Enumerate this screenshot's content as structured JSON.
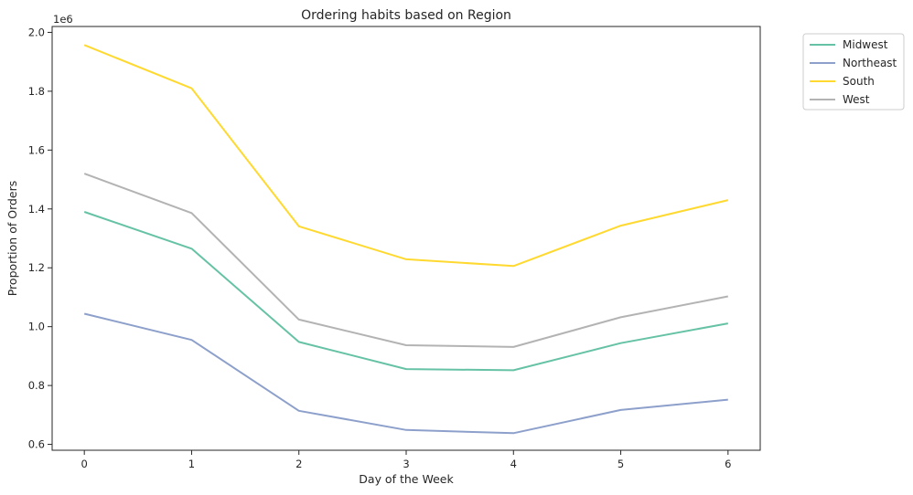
{
  "chart_data": {
    "type": "line",
    "title": "Ordering habits based on Region",
    "xlabel": "Day of the Week",
    "ylabel": "Proportion of Orders",
    "offset_label": "1e6",
    "x": [
      0,
      1,
      2,
      3,
      4,
      5,
      6
    ],
    "xticks": [
      "0",
      "1",
      "2",
      "3",
      "4",
      "5",
      "6"
    ],
    "xlim": [
      -0.3,
      6.3
    ],
    "yticks": [
      "0.6",
      "0.8",
      "1.0",
      "1.2",
      "1.4",
      "1.6",
      "1.8",
      "2.0"
    ],
    "ytick_values": [
      0.6,
      0.8,
      1.0,
      1.2,
      1.4,
      1.6,
      1.8,
      2.0
    ],
    "ylim": [
      0.58,
      2.02
    ],
    "grid": false,
    "legend_position": "outside top-right",
    "series": [
      {
        "name": "Midwest",
        "color": "#66c2a5",
        "values": [
          1.39,
          1.265,
          0.948,
          0.856,
          0.852,
          0.944,
          1.011
        ]
      },
      {
        "name": "Northeast",
        "color": "#8da0cb",
        "values": [
          1.044,
          0.955,
          0.714,
          0.649,
          0.638,
          0.717,
          0.752
        ]
      },
      {
        "name": "South",
        "color": "#ffd92f",
        "values": [
          1.957,
          1.81,
          1.341,
          1.229,
          1.206,
          1.343,
          1.43
        ]
      },
      {
        "name": "West",
        "color": "#b3b3b3",
        "values": [
          1.52,
          1.386,
          1.024,
          0.937,
          0.931,
          1.032,
          1.103
        ]
      }
    ]
  }
}
